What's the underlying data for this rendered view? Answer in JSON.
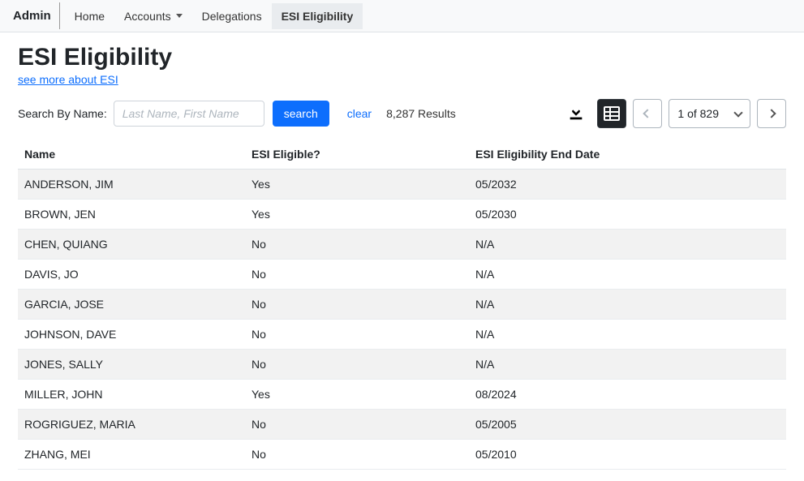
{
  "brand": "Admin",
  "nav": {
    "home": "Home",
    "accounts": "Accounts",
    "delegations": "Delegations",
    "esi": "ESI Eligibility"
  },
  "page": {
    "title": "ESI Eligibility",
    "sublink": "see more about ESI"
  },
  "search": {
    "label": "Search By Name:",
    "placeholder": "Last Name, First Name",
    "button": "search",
    "clear": "clear",
    "resultsCount": "8,287 Results"
  },
  "pagination": {
    "label": "1 of 829"
  },
  "table": {
    "columns": [
      "Name",
      "ESI Eligible?",
      "ESI Eligibility End Date"
    ],
    "rows": [
      [
        "ANDERSON, JIM",
        "Yes",
        "05/2032"
      ],
      [
        "BROWN, JEN",
        "Yes",
        "05/2030"
      ],
      [
        "CHEN, QUIANG",
        "No",
        "N/A"
      ],
      [
        "DAVIS, JO",
        "No",
        "N/A"
      ],
      [
        "GARCIA, JOSE",
        "No",
        "N/A"
      ],
      [
        "JOHNSON, DAVE",
        "No",
        "N/A"
      ],
      [
        "JONES, SALLY",
        "No",
        "N/A"
      ],
      [
        "MILLER, JOHN",
        "Yes",
        "08/2024"
      ],
      [
        "ROGRIGUEZ, MARIA",
        "No",
        "05/2005"
      ],
      [
        "ZHANG, MEI",
        "No",
        "05/2010"
      ]
    ]
  },
  "colors": {
    "primary": "#0d6efd",
    "row_stripe": "#f2f2f2",
    "topnav_bg": "#f8f9fa",
    "border": "#dee2e6"
  }
}
